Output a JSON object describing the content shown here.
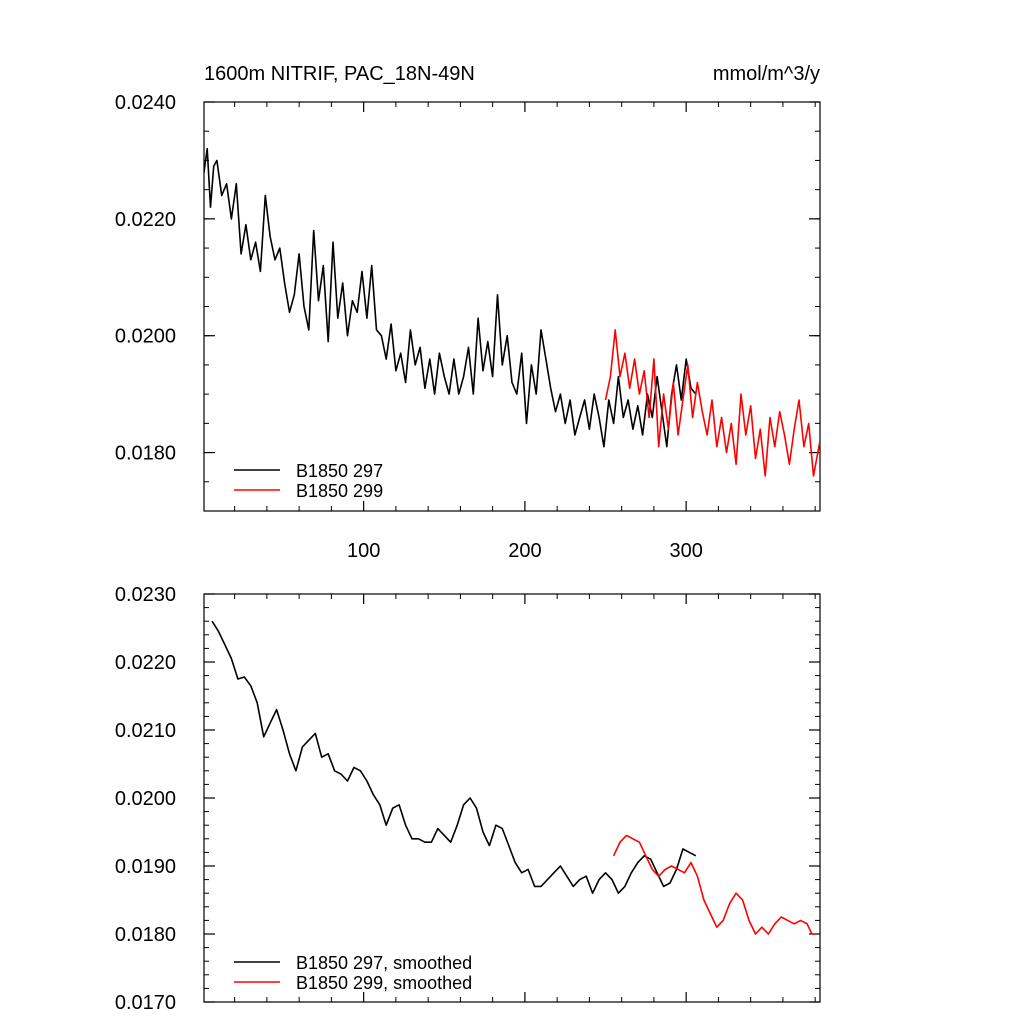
{
  "chart_data": [
    {
      "type": "line",
      "title": "1600m NITRIF, PAC_18N-49N",
      "units": "mmol/m^3/y",
      "xlabel": "",
      "ylabel": "",
      "xlim": [
        1,
        383
      ],
      "ylim": [
        0.017,
        0.024
      ],
      "xticks": [
        100,
        200,
        300
      ],
      "yticks": [
        0.018,
        0.02,
        0.022,
        0.024
      ],
      "ytick_labels": [
        "0.0180",
        "0.0200",
        "0.0220",
        "0.0240"
      ],
      "legend_position": "bottom-left",
      "series": [
        {
          "name": "B1850 297",
          "color": "#000000",
          "x": [
            1,
            3,
            5,
            7,
            9,
            12,
            15,
            18,
            21,
            24,
            27,
            30,
            33,
            36,
            39,
            42,
            45,
            48,
            51,
            54,
            57,
            60,
            63,
            66,
            69,
            72,
            75,
            78,
            81,
            84,
            87,
            90,
            93,
            96,
            99,
            102,
            105,
            108,
            111,
            114,
            117,
            120,
            123,
            126,
            129,
            132,
            135,
            138,
            141,
            144,
            147,
            150,
            153,
            156,
            159,
            162,
            165,
            168,
            171,
            174,
            177,
            180,
            183,
            186,
            189,
            192,
            195,
            198,
            201,
            204,
            207,
            210,
            213,
            216,
            219,
            222,
            225,
            228,
            231,
            234,
            237,
            240,
            243,
            246,
            249,
            252,
            255,
            258,
            261,
            264,
            267,
            270,
            273,
            276,
            279,
            282,
            285,
            288,
            291,
            294,
            297,
            300,
            303,
            306
          ],
          "values": [
            0.0228,
            0.0232,
            0.0222,
            0.0229,
            0.023,
            0.0224,
            0.0226,
            0.022,
            0.0226,
            0.0214,
            0.0219,
            0.0213,
            0.0216,
            0.0211,
            0.0224,
            0.0217,
            0.0213,
            0.0215,
            0.0209,
            0.0204,
            0.0207,
            0.0214,
            0.0205,
            0.0201,
            0.0218,
            0.0206,
            0.0212,
            0.0199,
            0.0216,
            0.0203,
            0.0209,
            0.02,
            0.0206,
            0.0204,
            0.0211,
            0.0203,
            0.0212,
            0.0201,
            0.02,
            0.0196,
            0.0202,
            0.0194,
            0.0197,
            0.0192,
            0.0201,
            0.0195,
            0.0198,
            0.0191,
            0.0196,
            0.019,
            0.0197,
            0.0193,
            0.019,
            0.0196,
            0.019,
            0.0193,
            0.0198,
            0.019,
            0.0203,
            0.0194,
            0.0199,
            0.0193,
            0.0207,
            0.0195,
            0.02,
            0.0192,
            0.019,
            0.0197,
            0.0185,
            0.0195,
            0.019,
            0.0201,
            0.0196,
            0.0191,
            0.0187,
            0.019,
            0.0185,
            0.0189,
            0.0183,
            0.0186,
            0.0189,
            0.0184,
            0.019,
            0.0186,
            0.0181,
            0.0189,
            0.0185,
            0.0193,
            0.0186,
            0.0189,
            0.0184,
            0.0188,
            0.0183,
            0.019,
            0.0186,
            0.0193,
            0.0187,
            0.0181,
            0.019,
            0.0195,
            0.0189,
            0.0196,
            0.0191,
            0.019
          ]
        },
        {
          "name": "B1850 299",
          "color": "#ff0000",
          "x": [
            250,
            253,
            256,
            259,
            262,
            265,
            268,
            271,
            274,
            277,
            280,
            283,
            286,
            289,
            292,
            295,
            298,
            301,
            304,
            307,
            310,
            313,
            316,
            319,
            322,
            325,
            328,
            331,
            334,
            337,
            340,
            343,
            346,
            349,
            352,
            355,
            358,
            361,
            364,
            367,
            370,
            373,
            376,
            379,
            383
          ],
          "values": [
            0.0189,
            0.0193,
            0.0201,
            0.0193,
            0.0197,
            0.0191,
            0.0196,
            0.019,
            0.0194,
            0.0186,
            0.0196,
            0.0181,
            0.019,
            0.0184,
            0.0192,
            0.0183,
            0.0189,
            0.0195,
            0.0186,
            0.0192,
            0.0187,
            0.0183,
            0.0189,
            0.0181,
            0.0186,
            0.018,
            0.0185,
            0.0178,
            0.019,
            0.0183,
            0.0188,
            0.0179,
            0.0184,
            0.0176,
            0.0186,
            0.0181,
            0.0187,
            0.0183,
            0.0178,
            0.0184,
            0.0189,
            0.0181,
            0.0185,
            0.0176,
            0.0182
          ]
        }
      ]
    },
    {
      "type": "line",
      "title": "",
      "xlabel": "",
      "ylabel": "",
      "xlim": [
        1,
        383
      ],
      "ylim": [
        0.017,
        0.023
      ],
      "xticks": [
        100,
        200,
        300
      ],
      "yticks": [
        0.017,
        0.018,
        0.019,
        0.02,
        0.021,
        0.022,
        0.023
      ],
      "ytick_labels": [
        "0.0170",
        "0.0180",
        "0.0190",
        "0.0200",
        "0.0210",
        "0.0220",
        "0.0230"
      ],
      "legend_position": "bottom-left",
      "series": [
        {
          "name": "B1850 297, smoothed",
          "color": "#000000",
          "x": [
            6,
            10,
            14,
            18,
            22,
            26,
            30,
            34,
            38,
            42,
            46,
            50,
            54,
            58,
            62,
            66,
            70,
            74,
            78,
            82,
            86,
            90,
            94,
            98,
            102,
            106,
            110,
            114,
            118,
            122,
            126,
            130,
            134,
            138,
            142,
            146,
            150,
            154,
            158,
            162,
            166,
            170,
            174,
            178,
            182,
            186,
            190,
            194,
            198,
            202,
            206,
            210,
            214,
            218,
            222,
            226,
            230,
            234,
            238,
            242,
            246,
            250,
            254,
            258,
            262,
            266,
            270,
            274,
            278,
            282,
            286,
            290,
            294,
            298,
            302,
            306
          ],
          "values": [
            0.0226,
            0.02245,
            0.02225,
            0.02205,
            0.02175,
            0.02178,
            0.02165,
            0.0214,
            0.0209,
            0.0211,
            0.0213,
            0.021,
            0.02065,
            0.0204,
            0.02075,
            0.02085,
            0.02095,
            0.0206,
            0.02065,
            0.0204,
            0.02035,
            0.02025,
            0.02045,
            0.0204,
            0.02025,
            0.02005,
            0.0199,
            0.0196,
            0.01985,
            0.0199,
            0.0196,
            0.0194,
            0.0194,
            0.01935,
            0.01935,
            0.01955,
            0.01945,
            0.01935,
            0.0196,
            0.0199,
            0.02,
            0.01985,
            0.0195,
            0.0193,
            0.0196,
            0.01955,
            0.0193,
            0.01905,
            0.0189,
            0.01895,
            0.0187,
            0.0187,
            0.0188,
            0.0189,
            0.019,
            0.01885,
            0.0187,
            0.0188,
            0.01885,
            0.0186,
            0.0188,
            0.0189,
            0.0188,
            0.0186,
            0.0187,
            0.0189,
            0.01905,
            0.01915,
            0.0191,
            0.0189,
            0.0187,
            0.01875,
            0.01895,
            0.01925,
            0.0192,
            0.01915
          ]
        },
        {
          "name": "B1850 299, smoothed",
          "color": "#ff0000",
          "x": [
            255,
            259,
            263,
            267,
            271,
            275,
            279,
            283,
            287,
            291,
            295,
            299,
            303,
            307,
            311,
            315,
            319,
            323,
            327,
            331,
            335,
            339,
            343,
            347,
            351,
            355,
            359,
            363,
            367,
            371,
            375,
            378,
            380
          ],
          "values": [
            0.01915,
            0.01935,
            0.01945,
            0.0194,
            0.01935,
            0.01915,
            0.01895,
            0.01885,
            0.01895,
            0.019,
            0.01895,
            0.0189,
            0.01905,
            0.01885,
            0.0185,
            0.0183,
            0.0181,
            0.0182,
            0.01845,
            0.0186,
            0.0185,
            0.0182,
            0.018,
            0.0181,
            0.018,
            0.01815,
            0.01825,
            0.0182,
            0.01815,
            0.0182,
            0.01815,
            0.018,
            0.018
          ]
        }
      ]
    }
  ]
}
